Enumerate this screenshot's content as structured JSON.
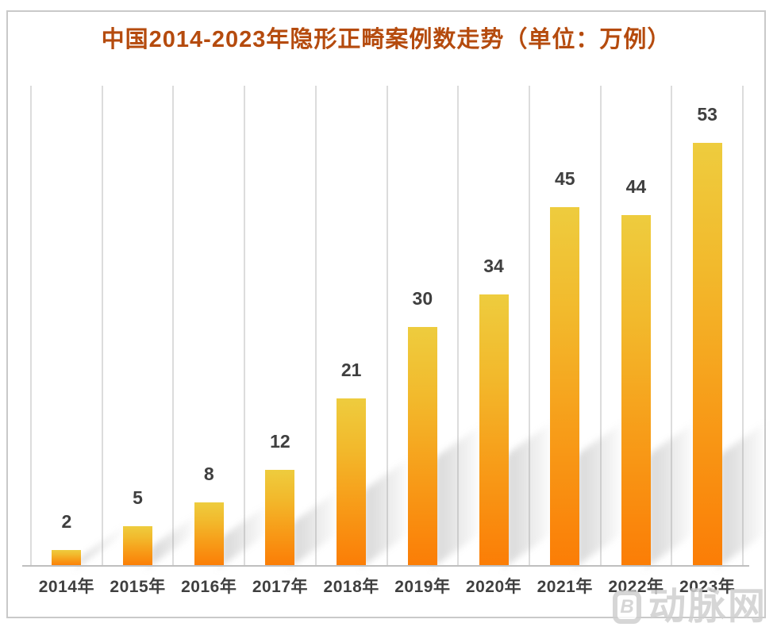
{
  "title": "中国2014-2023年隐形正畸案例数走势（单位：万例）",
  "chart_data": {
    "type": "bar",
    "title": "中国2014-2023年隐形正畸案例数走势（单位：万例）",
    "unit": "万例",
    "categories": [
      "2014年",
      "2015年",
      "2016年",
      "2017年",
      "2018年",
      "2019年",
      "2020年",
      "2021年",
      "2022年",
      "2023年"
    ],
    "values": [
      2,
      5,
      8,
      12,
      21,
      30,
      34,
      45,
      44,
      53
    ],
    "ylim": [
      0,
      60
    ],
    "xlabel": "",
    "ylabel": "",
    "grid": "vertical category separators, no horizontal gridlines, no y-axis ticks",
    "legend": "none",
    "data_labels": "above each bar",
    "colors": {
      "bar_gradient_top": "#eecc3e",
      "bar_gradient_bottom": "#fb7d06",
      "title_text": "#b54b0e",
      "label_text": "#3f3f3f",
      "gridline": "#dcdcdc",
      "axis_line": "#bfbfbf",
      "frame_border": "#c9c9c9",
      "background": "#ffffff"
    }
  },
  "watermark": {
    "logo_glyph": "B",
    "text": "动脉网",
    "color": "#cfcfcf"
  }
}
